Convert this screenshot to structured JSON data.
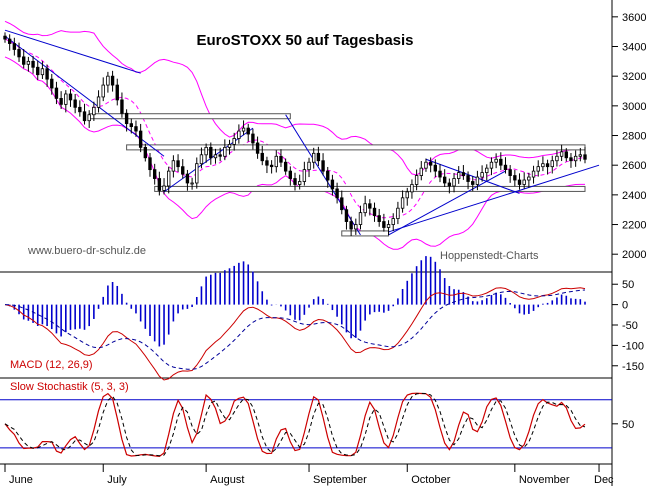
{
  "chart_data": [
    {
      "type": "line",
      "title": "EuroSTOXX 50 auf Tagesbasis",
      "source_label": "Hoppenstedt-Charts",
      "watermark": "www.buero-dr-schulz.de",
      "ylim": [
        1880,
        3700
      ],
      "y_ticks": [
        {
          "value": 3600,
          "label": "3600"
        },
        {
          "value": 3400,
          "label": "3400"
        },
        {
          "value": 3200,
          "label": "3200"
        },
        {
          "value": 3000,
          "label": "3000"
        },
        {
          "value": 2800,
          "label": "2800"
        },
        {
          "value": 2600,
          "label": "2600"
        },
        {
          "value": 2400,
          "label": "2400"
        },
        {
          "value": 2200,
          "label": "2200"
        },
        {
          "value": 2000,
          "label": "2000"
        }
      ],
      "x_range": [
        0,
        124
      ],
      "months": [
        {
          "label": "June",
          "day": 0
        },
        {
          "label": "July",
          "day": 21
        },
        {
          "label": "August",
          "day": 43
        },
        {
          "label": "September",
          "day": 65
        },
        {
          "label": "October",
          "day": 86
        },
        {
          "label": "November",
          "day": 109
        },
        {
          "label": "Dec",
          "day": 127
        }
      ],
      "close": [
        3450,
        3420,
        3380,
        3330,
        3280,
        3300,
        3260,
        3210,
        3250,
        3180,
        3120,
        3050,
        3010,
        3080,
        3040,
        2990,
        2960,
        2900,
        2940,
        2990,
        3060,
        3140,
        3200,
        3140,
        3040,
        2950,
        2880,
        2860,
        2830,
        2720,
        2650,
        2570,
        2510,
        2430,
        2460,
        2560,
        2630,
        2590,
        2540,
        2480,
        2480,
        2610,
        2670,
        2720,
        2650,
        2670,
        2660,
        2720,
        2740,
        2780,
        2830,
        2850,
        2810,
        2750,
        2680,
        2630,
        2600,
        2590,
        2660,
        2620,
        2560,
        2510,
        2470,
        2490,
        2570,
        2620,
        2680,
        2630,
        2560,
        2500,
        2440,
        2380,
        2300,
        2220,
        2170,
        2200,
        2280,
        2340,
        2310,
        2260,
        2220,
        2180,
        2200,
        2240,
        2310,
        2380,
        2420,
        2470,
        2530,
        2580,
        2620,
        2600,
        2560,
        2520,
        2480,
        2460,
        2510,
        2550,
        2530,
        2490,
        2470,
        2520,
        2550,
        2580,
        2620,
        2640,
        2600,
        2570,
        2530,
        2500,
        2470,
        2500,
        2520,
        2560,
        2590,
        2610,
        2590,
        2630,
        2660,
        2690,
        2650,
        2630,
        2660,
        2670,
        2640
      ],
      "series": [
        {
          "color": "#000000"
        },
        {
          "color": "#ff00ff"
        },
        {
          "color": "#ff00ff"
        },
        {
          "color": "#ff00ff"
        }
      ],
      "support_resistance": [
        {
          "day_from": 18,
          "day_to": 61,
          "value": 2930
        },
        {
          "day_from": 26,
          "day_to": 124,
          "value": 2720
        },
        {
          "day_from": 32,
          "day_to": 124,
          "value": 2440
        },
        {
          "day_from": 72,
          "day_to": 82,
          "value": 2140
        }
      ],
      "trend_lines": [
        {
          "from": [
            0,
            3510
          ],
          "to": [
            29,
            3220
          ]
        },
        {
          "from": [
            0,
            3470
          ],
          "to": [
            34,
            2660
          ]
        },
        {
          "from": [
            34,
            2420
          ],
          "to": [
            53,
            2850
          ]
        },
        {
          "from": [
            60,
            2940
          ],
          "to": [
            76,
            2130
          ]
        },
        {
          "from": [
            82,
            2130
          ],
          "to": [
            107,
            2560
          ]
        },
        {
          "from": [
            82,
            2150
          ],
          "to": [
            127,
            2600
          ]
        },
        {
          "from": [
            90,
            2640
          ],
          "to": [
            110,
            2410
          ]
        }
      ]
    },
    {
      "type": "line",
      "title": "MACD (12, 26,9)",
      "ylim": [
        -180,
        80
      ],
      "y_ticks": [
        {
          "value": 50,
          "label": "50"
        },
        {
          "value": 0,
          "label": "0"
        },
        {
          "value": -50,
          "label": "-50"
        },
        {
          "value": -100,
          "label": "-100"
        },
        {
          "value": -150,
          "label": "-150"
        }
      ],
      "series": [
        {
          "color": "#cc0000"
        },
        {
          "color": "#000099"
        },
        {
          "color": "#0000cc"
        }
      ]
    },
    {
      "type": "line",
      "title": "Slow Stochastik (5, 3, 3)",
      "ylim": [
        0,
        100
      ],
      "y_ticks": [
        {
          "value": 50,
          "label": "50"
        }
      ],
      "reference_lines": [
        80,
        20
      ],
      "series": [
        {
          "color": "#cc0000"
        },
        {
          "color": "#000000"
        }
      ]
    }
  ]
}
